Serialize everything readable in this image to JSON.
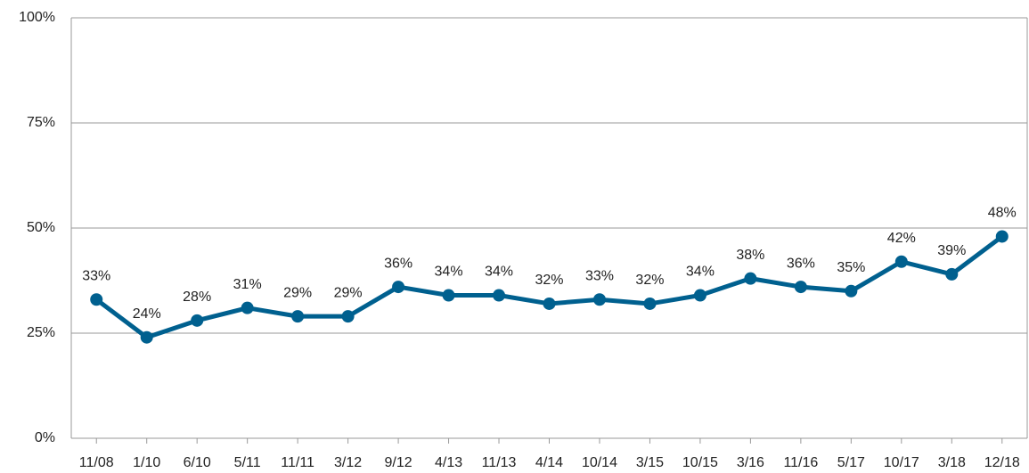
{
  "chart_data": {
    "type": "line",
    "categories": [
      "11/08",
      "1/10",
      "6/10",
      "5/11",
      "11/11",
      "3/12",
      "9/12",
      "4/13",
      "11/13",
      "4/14",
      "10/14",
      "3/15",
      "10/15",
      "3/16",
      "11/16",
      "5/17",
      "10/17",
      "3/18",
      "12/18"
    ],
    "values": [
      33,
      24,
      28,
      31,
      29,
      29,
      36,
      34,
      34,
      32,
      33,
      32,
      34,
      38,
      36,
      35,
      42,
      39,
      48
    ],
    "value_labels": [
      "33%",
      "24%",
      "28%",
      "31%",
      "29%",
      "29%",
      "36%",
      "34%",
      "34%",
      "32%",
      "33%",
      "32%",
      "34%",
      "38%",
      "36%",
      "35%",
      "42%",
      "39%",
      "48%"
    ],
    "color": "#00608f",
    "ylim": [
      0,
      100
    ],
    "yticks": [
      {
        "value": 0,
        "label": "0%"
      },
      {
        "value": 25,
        "label": "25%"
      },
      {
        "value": 50,
        "label": "50%"
      },
      {
        "value": 75,
        "label": "75%"
      },
      {
        "value": 100,
        "label": "100%"
      }
    ],
    "grid": true
  }
}
